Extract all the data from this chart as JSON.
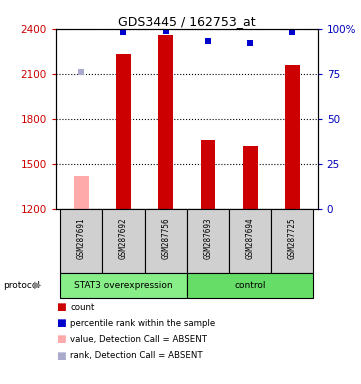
{
  "title": "GDS3445 / 162753_at",
  "samples": [
    "GSM287691",
    "GSM287692",
    "GSM287756",
    "GSM287693",
    "GSM287694",
    "GSM287725"
  ],
  "bar_values": [
    1420,
    2230,
    2360,
    1660,
    1620,
    2160
  ],
  "bar_colors": [
    "#ffaaaa",
    "#cc0000",
    "#cc0000",
    "#cc0000",
    "#cc0000",
    "#cc0000"
  ],
  "rank_values_pct": [
    76,
    98,
    99,
    93,
    92,
    98
  ],
  "rank_colors": [
    "#aaaacc",
    "#0000cc",
    "#0000cc",
    "#0000cc",
    "#0000cc",
    "#0000cc"
  ],
  "ylim_left": [
    1200,
    2400
  ],
  "ylim_right": [
    0,
    100
  ],
  "yticks_left": [
    1200,
    1500,
    1800,
    2100,
    2400
  ],
  "yticks_right": [
    0,
    25,
    50,
    75,
    100
  ],
  "groups": [
    {
      "label": "STAT3 overexpression",
      "start": 0,
      "end": 3,
      "color": "#88ee88"
    },
    {
      "label": "control",
      "start": 3,
      "end": 6,
      "color": "#66dd66"
    }
  ],
  "protocol_label": "protocol",
  "legend_items": [
    {
      "color": "#cc0000",
      "label": "count"
    },
    {
      "color": "#0000cc",
      "label": "percentile rank within the sample"
    },
    {
      "color": "#ffaaaa",
      "label": "value, Detection Call = ABSENT"
    },
    {
      "color": "#aaaacc",
      "label": "rank, Detection Call = ABSENT"
    }
  ],
  "left_axis_color": "#cc0000",
  "right_axis_color": "#0000bb",
  "bar_width": 0.35
}
